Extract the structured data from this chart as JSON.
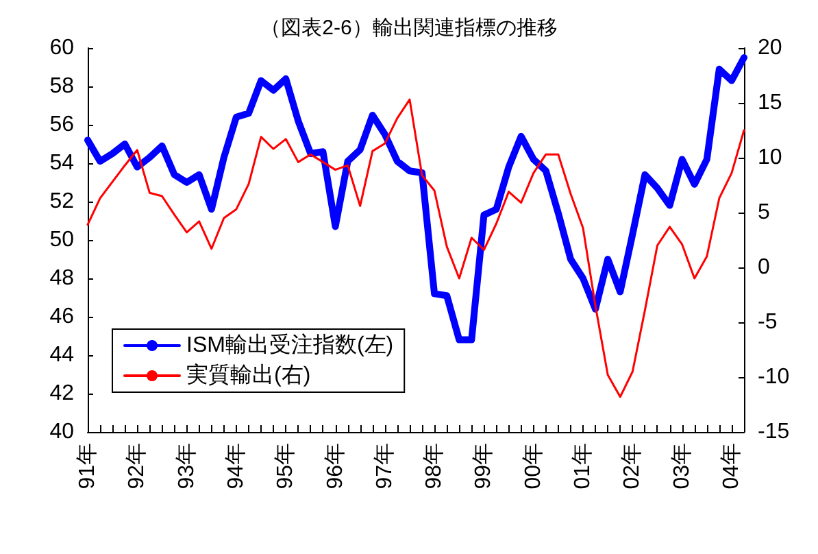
{
  "chart_data": {
    "type": "line",
    "title": "（図表2-6）輸出関連指標の推移",
    "categories": [
      "91年",
      null,
      null,
      null,
      "92年",
      null,
      null,
      null,
      "93年",
      null,
      null,
      null,
      "94年",
      null,
      null,
      null,
      "95年",
      null,
      null,
      null,
      "96年",
      null,
      null,
      null,
      "97年",
      null,
      null,
      null,
      "98年",
      null,
      null,
      null,
      "99年",
      null,
      null,
      null,
      "00年",
      null,
      null,
      null,
      "01年",
      null,
      null,
      null,
      "02年",
      null,
      null,
      null,
      "03年",
      null,
      null,
      null,
      "04年",
      null
    ],
    "series": [
      {
        "name": "ISM輸出受注指数(左)",
        "color": "#0000ff",
        "values": [
          55.2,
          54.1,
          54.5,
          55.0,
          53.8,
          54.3,
          54.9,
          53.4,
          53.0,
          53.4,
          51.6,
          54.3,
          56.4,
          56.6,
          58.3,
          57.8,
          58.4,
          56.2,
          54.5,
          54.6,
          50.7,
          54.1,
          54.7,
          56.5,
          55.5,
          54.1,
          53.6,
          53.5,
          47.2,
          47.1,
          44.8,
          44.8,
          51.3,
          51.6,
          53.8,
          55.4,
          54.2,
          53.6,
          51.4,
          49.0,
          48.0,
          46.4,
          49.0,
          47.3,
          50.3,
          53.4,
          52.7,
          51.8,
          54.2,
          52.9,
          54.2,
          58.9,
          58.3,
          59.5
        ]
      },
      {
        "name": "実質輸出(右)",
        "color": "#ff0000",
        "axis": "y2",
        "values": [
          3.9,
          6.3,
          7.8,
          9.3,
          10.7,
          6.8,
          6.5,
          4.8,
          3.2,
          4.2,
          1.7,
          4.5,
          5.3,
          7.6,
          11.9,
          10.8,
          11.7,
          9.6,
          10.3,
          9.6,
          8.9,
          9.3,
          5.6,
          10.6,
          11.3,
          13.6,
          15.3,
          8.4,
          7.0,
          1.9,
          -1.0,
          2.7,
          1.6,
          4.0,
          6.9,
          5.9,
          8.6,
          10.3,
          10.3,
          6.7,
          3.6,
          -3.5,
          -9.8,
          -11.8,
          -9.5,
          -3.9,
          2.0,
          3.7,
          2.1,
          -1.0,
          1.0,
          6.3,
          8.6,
          12.5
        ]
      }
    ],
    "ylim": [
      40,
      60
    ],
    "yticks": [
      40,
      42,
      44,
      46,
      48,
      50,
      52,
      54,
      56,
      58,
      60
    ],
    "y2lim": [
      -15,
      20
    ],
    "y2ticks": [
      -15,
      -10,
      -5,
      0,
      5,
      10,
      15,
      20
    ],
    "legend": "bottom left",
    "grid": false,
    "marker": "none",
    "line_style": "solid"
  }
}
